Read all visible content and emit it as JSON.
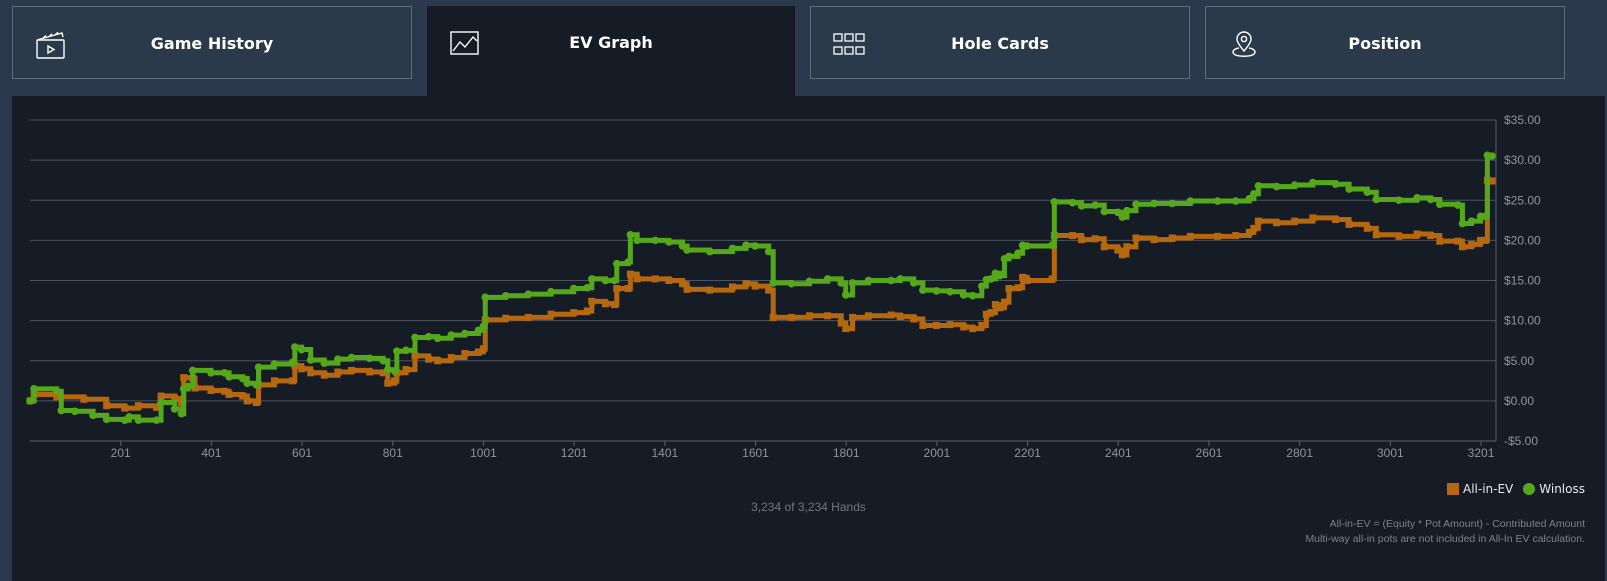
{
  "tabs": [
    {
      "label": "Game History",
      "icon": "clapperboard-icon"
    },
    {
      "label": "EV Graph",
      "icon": "line-chart-icon",
      "active": true
    },
    {
      "label": "Hole Cards",
      "icon": "grid-icon"
    },
    {
      "label": "Position",
      "icon": "location-pin-icon"
    }
  ],
  "hands_text": "3,234 of 3,234 Hands",
  "notes": [
    "All-in-EV = (Equity * Pot Amount) - Contributed Amount",
    "Multi-way all-in pots are not included in All-In EV calculation."
  ],
  "colors": {
    "all_in_ev": "#b5680f",
    "winloss": "#56a81b",
    "grid": "#4a5360",
    "axis_text": "#8c95a1"
  },
  "chart_data": {
    "type": "line",
    "xlim": [
      1,
      3234
    ],
    "ylim": [
      -5,
      35
    ],
    "x_ticks": [
      201,
      401,
      601,
      801,
      1001,
      1201,
      1401,
      1601,
      1801,
      2001,
      2201,
      2401,
      2601,
      2801,
      3001,
      3201
    ],
    "x_tick_labels": [
      "201",
      "401",
      "601",
      "801",
      "1001",
      "1201",
      "1401",
      "1601",
      "1801",
      "2001",
      "2201",
      "2401",
      "2601",
      "2801",
      "3001",
      "3201"
    ],
    "y_ticks": [
      -5,
      0,
      5,
      10,
      15,
      20,
      25,
      30,
      35
    ],
    "y_tick_labels": [
      "-$5.00",
      "$0.00",
      "$5.00",
      "$10.00",
      "$15.00",
      "$20.00",
      "$25.00",
      "$30.00",
      "$35.00"
    ],
    "y_axis_side": "right",
    "grid": true,
    "legend_position": "bottom-right",
    "series": [
      {
        "name": "All-in-EV",
        "marker": "square",
        "points": [
          [
            1,
            0
          ],
          [
            10,
            0.8
          ],
          [
            60,
            0.5
          ],
          [
            120,
            0.2
          ],
          [
            170,
            -0.6
          ],
          [
            210,
            -0.9
          ],
          [
            240,
            -0.6
          ],
          [
            280,
            -0.8
          ],
          [
            290,
            0.6
          ],
          [
            320,
            0.3
          ],
          [
            335,
            -0.2
          ],
          [
            340,
            2.9
          ],
          [
            360,
            2.8
          ],
          [
            365,
            1.6
          ],
          [
            400,
            1.3
          ],
          [
            430,
            1.2
          ],
          [
            440,
            0.8
          ],
          [
            470,
            0.6
          ],
          [
            480,
            0
          ],
          [
            500,
            -0.2
          ],
          [
            505,
            2.0
          ],
          [
            540,
            2.5
          ],
          [
            580,
            2.5
          ],
          [
            585,
            4.4
          ],
          [
            600,
            4.0
          ],
          [
            620,
            3.5
          ],
          [
            650,
            3.2
          ],
          [
            680,
            3.6
          ],
          [
            710,
            3.8
          ],
          [
            750,
            3.6
          ],
          [
            780,
            3.5
          ],
          [
            790,
            2.2
          ],
          [
            805,
            2.5
          ],
          [
            810,
            3.5
          ],
          [
            830,
            3.9
          ],
          [
            850,
            5.6
          ],
          [
            880,
            5.2
          ],
          [
            900,
            5.0
          ],
          [
            930,
            5.4
          ],
          [
            960,
            5.9
          ],
          [
            990,
            6.1
          ],
          [
            1001,
            6.5
          ],
          [
            1005,
            10.1
          ],
          [
            1050,
            10.3
          ],
          [
            1100,
            10.4
          ],
          [
            1150,
            10.8
          ],
          [
            1200,
            11.0
          ],
          [
            1230,
            11.2
          ],
          [
            1240,
            12.4
          ],
          [
            1270,
            12.1
          ],
          [
            1290,
            12.0
          ],
          [
            1295,
            14.0
          ],
          [
            1320,
            14.0
          ],
          [
            1325,
            15.8
          ],
          [
            1340,
            15.2
          ],
          [
            1380,
            15.2
          ],
          [
            1410,
            15.0
          ],
          [
            1440,
            14.6
          ],
          [
            1450,
            13.9
          ],
          [
            1500,
            13.8
          ],
          [
            1550,
            14.2
          ],
          [
            1580,
            14.6
          ],
          [
            1600,
            14.3
          ],
          [
            1630,
            13.8
          ],
          [
            1640,
            10.4
          ],
          [
            1680,
            10.4
          ],
          [
            1720,
            10.6
          ],
          [
            1760,
            10.6
          ],
          [
            1790,
            9.7
          ],
          [
            1800,
            9.0
          ],
          [
            1815,
            10.4
          ],
          [
            1850,
            10.6
          ],
          [
            1900,
            10.7
          ],
          [
            1920,
            10.5
          ],
          [
            1950,
            10.2
          ],
          [
            1970,
            9.4
          ],
          [
            2000,
            9.4
          ],
          [
            2030,
            9.5
          ],
          [
            2060,
            9.2
          ],
          [
            2080,
            9.0
          ],
          [
            2100,
            9.4
          ],
          [
            2110,
            10.8
          ],
          [
            2120,
            11.0
          ],
          [
            2130,
            12.0
          ],
          [
            2140,
            11.6
          ],
          [
            2150,
            12.3
          ],
          [
            2160,
            14.0
          ],
          [
            2180,
            14.1
          ],
          [
            2190,
            15.4
          ],
          [
            2200,
            15.0
          ],
          [
            2255,
            15.2
          ],
          [
            2260,
            20.6
          ],
          [
            2300,
            20.6
          ],
          [
            2320,
            20.1
          ],
          [
            2350,
            20.2
          ],
          [
            2370,
            19.2
          ],
          [
            2400,
            18.8
          ],
          [
            2410,
            18.2
          ],
          [
            2420,
            19.2
          ],
          [
            2440,
            20.3
          ],
          [
            2480,
            20.1
          ],
          [
            2520,
            20.3
          ],
          [
            2560,
            20.5
          ],
          [
            2620,
            20.5
          ],
          [
            2660,
            20.6
          ],
          [
            2690,
            21.0
          ],
          [
            2700,
            21.5
          ],
          [
            2710,
            22.4
          ],
          [
            2750,
            22.2
          ],
          [
            2790,
            22.4
          ],
          [
            2830,
            22.8
          ],
          [
            2880,
            22.6
          ],
          [
            2910,
            22.0
          ],
          [
            2950,
            21.5
          ],
          [
            2970,
            20.7
          ],
          [
            3020,
            20.5
          ],
          [
            3060,
            20.8
          ],
          [
            3090,
            20.6
          ],
          [
            3110,
            19.9
          ],
          [
            3150,
            19.9
          ],
          [
            3160,
            19.2
          ],
          [
            3180,
            19.5
          ],
          [
            3200,
            20.0
          ],
          [
            3210,
            20.0
          ],
          [
            3215,
            27.5
          ],
          [
            3225,
            27.4
          ]
        ]
      },
      {
        "name": "Winloss",
        "marker": "circle",
        "points": [
          [
            1,
            0
          ],
          [
            10,
            1.5
          ],
          [
            60,
            1.2
          ],
          [
            70,
            -1.2
          ],
          [
            100,
            -1.3
          ],
          [
            140,
            -1.8
          ],
          [
            170,
            -2.3
          ],
          [
            210,
            -2.4
          ],
          [
            220,
            -2.0
          ],
          [
            240,
            -2.4
          ],
          [
            280,
            -2.4
          ],
          [
            290,
            -0.2
          ],
          [
            320,
            -1.0
          ],
          [
            335,
            -1.6
          ],
          [
            340,
            1.5
          ],
          [
            350,
            1.8
          ],
          [
            360,
            3.8
          ],
          [
            400,
            3.5
          ],
          [
            430,
            3.5
          ],
          [
            440,
            3.0
          ],
          [
            470,
            2.8
          ],
          [
            480,
            2.2
          ],
          [
            500,
            2.0
          ],
          [
            505,
            4.2
          ],
          [
            540,
            4.6
          ],
          [
            580,
            4.8
          ],
          [
            585,
            6.7
          ],
          [
            600,
            6.4
          ],
          [
            620,
            5.1
          ],
          [
            650,
            4.7
          ],
          [
            680,
            5.2
          ],
          [
            710,
            5.4
          ],
          [
            750,
            5.3
          ],
          [
            780,
            5.0
          ],
          [
            790,
            3.9
          ],
          [
            805,
            3.7
          ],
          [
            810,
            6.2
          ],
          [
            830,
            6.3
          ],
          [
            850,
            7.9
          ],
          [
            880,
            8.0
          ],
          [
            900,
            7.8
          ],
          [
            930,
            8.2
          ],
          [
            960,
            8.4
          ],
          [
            990,
            8.8
          ],
          [
            1001,
            9.3
          ],
          [
            1005,
            12.9
          ],
          [
            1050,
            13.1
          ],
          [
            1100,
            13.3
          ],
          [
            1150,
            13.6
          ],
          [
            1200,
            14.0
          ],
          [
            1230,
            14.1
          ],
          [
            1240,
            15.2
          ],
          [
            1270,
            15.0
          ],
          [
            1290,
            15.0
          ],
          [
            1295,
            17.1
          ],
          [
            1320,
            17.3
          ],
          [
            1325,
            20.7
          ],
          [
            1340,
            20.0
          ],
          [
            1380,
            20.0
          ],
          [
            1410,
            19.8
          ],
          [
            1440,
            19.3
          ],
          [
            1450,
            18.8
          ],
          [
            1500,
            18.6
          ],
          [
            1550,
            19.0
          ],
          [
            1580,
            19.4
          ],
          [
            1600,
            19.3
          ],
          [
            1630,
            18.6
          ],
          [
            1640,
            14.7
          ],
          [
            1680,
            14.6
          ],
          [
            1720,
            14.9
          ],
          [
            1760,
            15.2
          ],
          [
            1790,
            14.7
          ],
          [
            1800,
            13.2
          ],
          [
            1815,
            14.7
          ],
          [
            1850,
            15.0
          ],
          [
            1900,
            15.0
          ],
          [
            1920,
            15.2
          ],
          [
            1950,
            14.7
          ],
          [
            1970,
            13.8
          ],
          [
            2000,
            13.7
          ],
          [
            2030,
            13.6
          ],
          [
            2060,
            13.2
          ],
          [
            2080,
            13.1
          ],
          [
            2100,
            14.3
          ],
          [
            2110,
            15.1
          ],
          [
            2120,
            15.2
          ],
          [
            2130,
            15.9
          ],
          [
            2140,
            15.6
          ],
          [
            2150,
            17.7
          ],
          [
            2160,
            18.0
          ],
          [
            2180,
            18.4
          ],
          [
            2190,
            19.4
          ],
          [
            2200,
            19.3
          ],
          [
            2255,
            19.4
          ],
          [
            2260,
            24.8
          ],
          [
            2300,
            24.7
          ],
          [
            2320,
            24.3
          ],
          [
            2350,
            24.4
          ],
          [
            2370,
            23.6
          ],
          [
            2400,
            23.5
          ],
          [
            2410,
            22.9
          ],
          [
            2420,
            23.7
          ],
          [
            2440,
            24.5
          ],
          [
            2480,
            24.6
          ],
          [
            2520,
            24.6
          ],
          [
            2560,
            24.9
          ],
          [
            2620,
            24.9
          ],
          [
            2660,
            24.9
          ],
          [
            2690,
            25.2
          ],
          [
            2700,
            25.8
          ],
          [
            2710,
            26.8
          ],
          [
            2750,
            26.7
          ],
          [
            2790,
            26.9
          ],
          [
            2830,
            27.2
          ],
          [
            2880,
            27.0
          ],
          [
            2910,
            26.4
          ],
          [
            2950,
            26.0
          ],
          [
            2970,
            25.1
          ],
          [
            3020,
            25.0
          ],
          [
            3060,
            25.3
          ],
          [
            3090,
            25.1
          ],
          [
            3110,
            24.5
          ],
          [
            3150,
            24.4
          ],
          [
            3160,
            22.1
          ],
          [
            3180,
            22.4
          ],
          [
            3200,
            23.0
          ],
          [
            3210,
            23.0
          ],
          [
            3215,
            30.6
          ],
          [
            3225,
            30.5
          ]
        ]
      }
    ]
  }
}
